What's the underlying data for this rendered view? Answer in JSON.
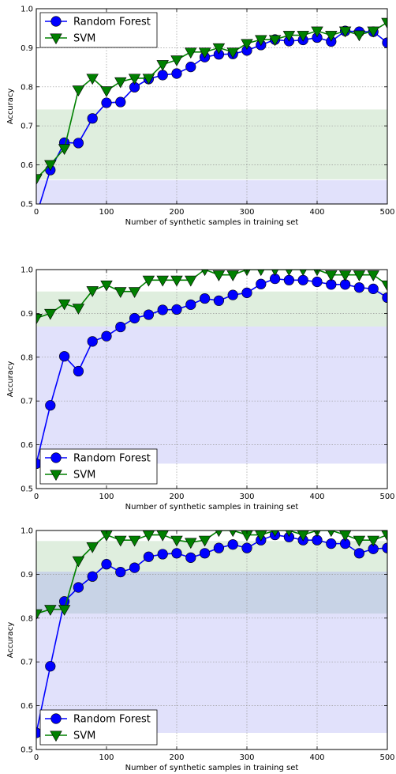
{
  "chart_data": [
    {
      "type": "line",
      "xlabel": "Number of synthetic samples in training set",
      "ylabel": "Accuracy",
      "xlim": [
        0,
        500
      ],
      "ylim": [
        0.5,
        1.0
      ],
      "xticks": [
        "0",
        "100",
        "200",
        "300",
        "400",
        "500"
      ],
      "yticks": [
        "0.5",
        "0.6",
        "0.7",
        "0.8",
        "0.9",
        "1.0"
      ],
      "grid": true,
      "legend_position": "top-left",
      "x": [
        0,
        20,
        40,
        60,
        80,
        100,
        120,
        140,
        160,
        180,
        200,
        220,
        240,
        260,
        280,
        300,
        320,
        340,
        360,
        380,
        400,
        420,
        440,
        460,
        480,
        500
      ],
      "bands": [
        {
          "color": "#dfeede",
          "y0": 0.563,
          "y1": 0.742
        },
        {
          "color": "#e1e1fb",
          "y0": 0.5,
          "y1": 0.561
        }
      ],
      "series": [
        {
          "name": "Random Forest",
          "color": "#0000ff",
          "marker": "circle",
          "values": [
            0.47,
            0.587,
            0.657,
            0.656,
            0.719,
            0.759,
            0.761,
            0.799,
            0.82,
            0.83,
            0.834,
            0.851,
            0.876,
            0.883,
            0.884,
            0.893,
            0.907,
            0.921,
            0.917,
            0.92,
            0.926,
            0.916,
            0.943,
            0.941,
            0.941,
            0.913
          ]
        },
        {
          "name": "SVM",
          "color": "#008000",
          "marker": "triangle-down",
          "values": [
            0.565,
            0.601,
            0.642,
            0.792,
            0.822,
            0.79,
            0.813,
            0.822,
            0.822,
            0.857,
            0.869,
            0.889,
            0.889,
            0.9,
            0.889,
            0.911,
            0.921,
            0.921,
            0.932,
            0.932,
            0.943,
            0.932,
            0.943,
            0.933,
            0.943,
            0.965
          ]
        }
      ]
    },
    {
      "type": "line",
      "xlabel": "Number of synthetic samples in training set",
      "ylabel": "Accuracy",
      "xlim": [
        0,
        500
      ],
      "ylim": [
        0.5,
        1.0
      ],
      "xticks": [
        "0",
        "100",
        "200",
        "300",
        "400",
        "500"
      ],
      "yticks": [
        "0.5",
        "0.6",
        "0.7",
        "0.8",
        "0.9",
        "1.0"
      ],
      "grid": true,
      "legend_position": "bottom-left",
      "x": [
        0,
        20,
        40,
        60,
        80,
        100,
        120,
        140,
        160,
        180,
        200,
        220,
        240,
        260,
        280,
        300,
        320,
        340,
        360,
        380,
        400,
        420,
        440,
        460,
        480,
        500
      ],
      "bands": [
        {
          "color": "#dfeede",
          "y0": 0.87,
          "y1": 0.95
        },
        {
          "color": "#e1e1fb",
          "y0": 0.557,
          "y1": 0.87
        }
      ],
      "series": [
        {
          "name": "Random Forest",
          "color": "#0000ff",
          "marker": "circle",
          "values": [
            0.557,
            0.69,
            0.802,
            0.768,
            0.836,
            0.848,
            0.869,
            0.889,
            0.897,
            0.908,
            0.909,
            0.92,
            0.934,
            0.929,
            0.942,
            0.947,
            0.967,
            0.979,
            0.976,
            0.976,
            0.972,
            0.966,
            0.966,
            0.959,
            0.956,
            0.936
          ]
        },
        {
          "name": "SVM",
          "color": "#008000",
          "marker": "triangle-down",
          "values": [
            0.889,
            0.9,
            0.922,
            0.912,
            0.952,
            0.965,
            0.95,
            0.95,
            0.976,
            0.976,
            0.976,
            0.976,
            1.0,
            0.988,
            0.988,
            1.0,
            1.0,
            1.0,
            1.0,
            1.0,
            1.0,
            0.988,
            0.988,
            0.988,
            0.988,
            0.965
          ]
        }
      ]
    },
    {
      "type": "line",
      "xlabel": "Number of synthetic samples in training set",
      "ylabel": "Accuracy",
      "xlim": [
        0,
        500
      ],
      "ylim": [
        0.5,
        1.0
      ],
      "xticks": [
        "0",
        "100",
        "200",
        "300",
        "400",
        "500"
      ],
      "yticks": [
        "0.5",
        "0.6",
        "0.7",
        "0.8",
        "0.9",
        "1.0"
      ],
      "grid": true,
      "legend_position": "bottom-left",
      "x": [
        0,
        20,
        40,
        60,
        80,
        100,
        120,
        140,
        160,
        180,
        200,
        220,
        240,
        260,
        280,
        300,
        320,
        340,
        360,
        380,
        400,
        420,
        440,
        460,
        480,
        500
      ],
      "bands": [
        {
          "color": "#dfeede",
          "y0": 0.906,
          "y1": 0.976
        },
        {
          "color": "#c8d3e6",
          "y0": 0.81,
          "y1": 0.906
        },
        {
          "color": "#e1e1fb",
          "y0": 0.538,
          "y1": 0.81
        }
      ],
      "series": [
        {
          "name": "Random Forest",
          "color": "#0000ff",
          "marker": "circle",
          "values": [
            0.538,
            0.69,
            0.838,
            0.87,
            0.895,
            0.923,
            0.905,
            0.915,
            0.94,
            0.946,
            0.948,
            0.938,
            0.948,
            0.96,
            0.968,
            0.96,
            0.978,
            0.99,
            0.985,
            0.978,
            0.978,
            0.97,
            0.97,
            0.948,
            0.958,
            0.96
          ]
        },
        {
          "name": "SVM",
          "color": "#008000",
          "marker": "triangle-down",
          "values": [
            0.81,
            0.82,
            0.82,
            0.931,
            0.963,
            0.99,
            0.978,
            0.978,
            0.99,
            0.99,
            0.978,
            0.973,
            0.978,
            1.0,
            1.0,
            0.99,
            0.99,
            1.0,
            1.0,
            0.99,
            1.0,
            1.0,
            0.99,
            0.978,
            0.978,
            0.99
          ]
        }
      ]
    }
  ]
}
